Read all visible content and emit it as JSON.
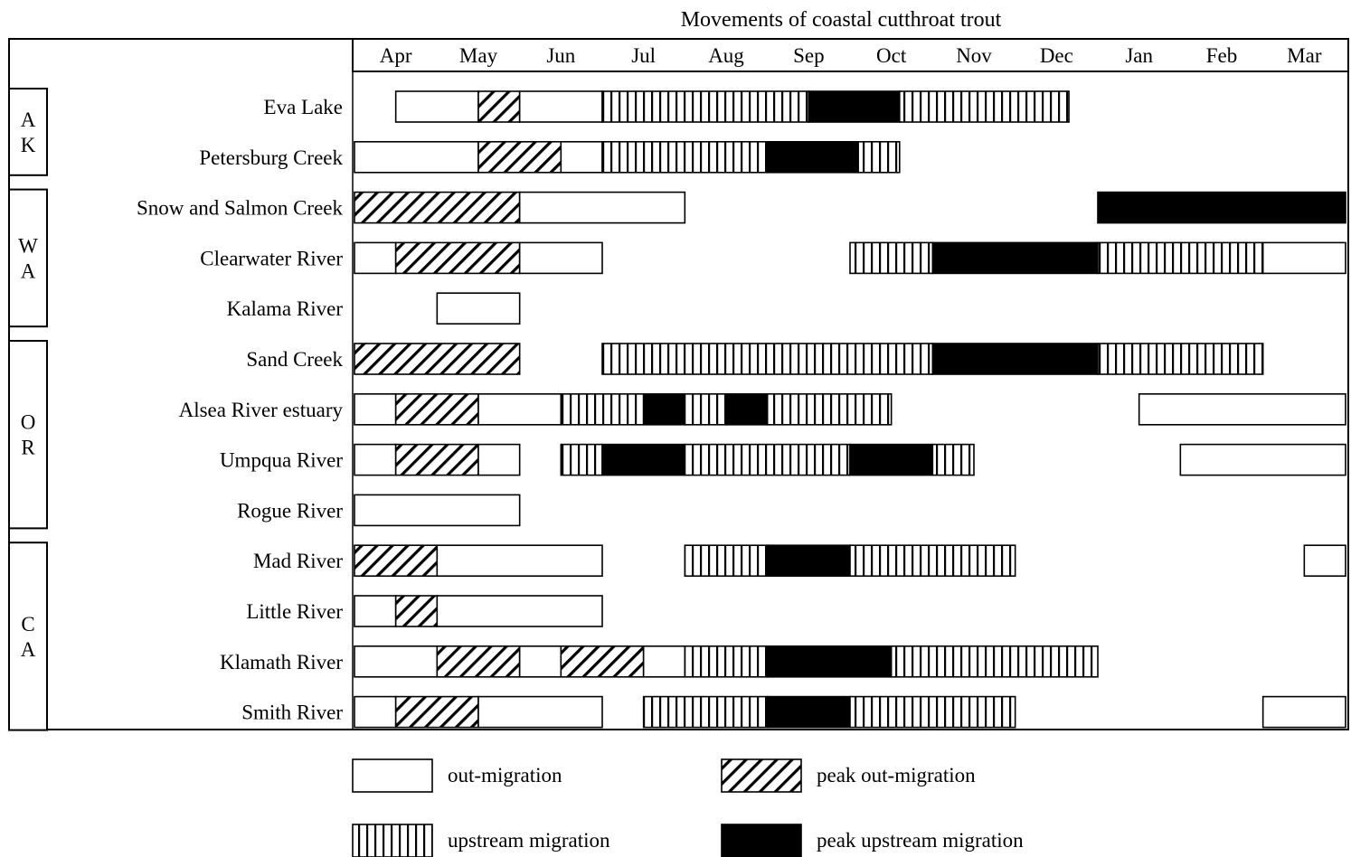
{
  "chart_data": {
    "type": "gantt",
    "title": "Movements of coastal cutthroat trout",
    "months": [
      "Apr",
      "May",
      "Jun",
      "Jul",
      "Aug",
      "Sep",
      "Oct",
      "Nov",
      "Dec",
      "Jan",
      "Feb",
      "Mar"
    ],
    "x_unit": "months from start of April",
    "state_groups": [
      {
        "label": "A\nK",
        "rows": [
          "Eva Lake",
          "Petersburg Creek"
        ]
      },
      {
        "label": "W\nA",
        "rows": [
          "Snow and Salmon Creek",
          "Clearwater River",
          "Kalama River"
        ]
      },
      {
        "label": "O\nR",
        "rows": [
          "Sand Creek",
          "Alsea River estuary",
          "Umpqua River",
          "Rogue River"
        ]
      },
      {
        "label": "C\nA",
        "rows": [
          "Mad River",
          "Little River",
          "Klamath River",
          "Smith River"
        ]
      }
    ],
    "categories": [
      {
        "key": "out",
        "label": "out-migration"
      },
      {
        "key": "peak_out",
        "label": "peak out-migration"
      },
      {
        "key": "up",
        "label": "upstream migration"
      },
      {
        "key": "peak_up",
        "label": "peak upstream migration"
      }
    ],
    "rows": [
      {
        "name": "Eva Lake",
        "segments": [
          {
            "cat": "out",
            "start": 0.5,
            "end": 1.5
          },
          {
            "cat": "peak_out",
            "start": 1.5,
            "end": 2.0
          },
          {
            "cat": "out",
            "start": 2.0,
            "end": 3.0
          },
          {
            "cat": "up",
            "start": 3.0,
            "end": 5.5
          },
          {
            "cat": "peak_up",
            "start": 5.5,
            "end": 6.6
          },
          {
            "cat": "up",
            "start": 6.6,
            "end": 8.65
          }
        ]
      },
      {
        "name": "Petersburg Creek",
        "segments": [
          {
            "cat": "out",
            "start": 0.0,
            "end": 1.5
          },
          {
            "cat": "peak_out",
            "start": 1.5,
            "end": 2.5
          },
          {
            "cat": "out",
            "start": 2.5,
            "end": 3.0
          },
          {
            "cat": "up",
            "start": 3.0,
            "end": 5.0
          },
          {
            "cat": "peak_up",
            "start": 5.0,
            "end": 6.1
          },
          {
            "cat": "up",
            "start": 6.1,
            "end": 6.6
          }
        ]
      },
      {
        "name": "Snow and Salmon Creek",
        "segments": [
          {
            "cat": "peak_out",
            "start": 0.0,
            "end": 2.0
          },
          {
            "cat": "out",
            "start": 2.0,
            "end": 4.0
          },
          {
            "cat": "peak_up",
            "start": 9.0,
            "end": 12.0
          }
        ]
      },
      {
        "name": "Clearwater River",
        "segments": [
          {
            "cat": "out",
            "start": 0.0,
            "end": 0.5
          },
          {
            "cat": "peak_out",
            "start": 0.5,
            "end": 2.0
          },
          {
            "cat": "out",
            "start": 2.0,
            "end": 3.0
          },
          {
            "cat": "up",
            "start": 6.0,
            "end": 7.0
          },
          {
            "cat": "peak_up",
            "start": 7.0,
            "end": 9.0
          },
          {
            "cat": "up",
            "start": 9.0,
            "end": 11.0
          },
          {
            "cat": "out",
            "start": 11.0,
            "end": 12.0
          }
        ]
      },
      {
        "name": "Kalama River",
        "segments": [
          {
            "cat": "out",
            "start": 1.0,
            "end": 2.0
          }
        ]
      },
      {
        "name": "Sand Creek",
        "segments": [
          {
            "cat": "peak_out",
            "start": 0.0,
            "end": 2.0
          },
          {
            "cat": "up",
            "start": 3.0,
            "end": 7.0
          },
          {
            "cat": "peak_up",
            "start": 7.0,
            "end": 9.0
          },
          {
            "cat": "up",
            "start": 9.0,
            "end": 11.0
          }
        ]
      },
      {
        "name": "Alsea River estuary",
        "segments": [
          {
            "cat": "out",
            "start": 0.0,
            "end": 0.5
          },
          {
            "cat": "peak_out",
            "start": 0.5,
            "end": 1.5
          },
          {
            "cat": "out",
            "start": 1.5,
            "end": 2.5
          },
          {
            "cat": "up",
            "start": 2.5,
            "end": 3.5
          },
          {
            "cat": "peak_up",
            "start": 3.5,
            "end": 4.0
          },
          {
            "cat": "up",
            "start": 4.0,
            "end": 4.5
          },
          {
            "cat": "peak_up",
            "start": 4.5,
            "end": 5.0
          },
          {
            "cat": "up",
            "start": 5.0,
            "end": 6.5
          },
          {
            "cat": "out",
            "start": 9.5,
            "end": 12.0
          }
        ]
      },
      {
        "name": "Umpqua River",
        "segments": [
          {
            "cat": "out",
            "start": 0.0,
            "end": 0.5
          },
          {
            "cat": "peak_out",
            "start": 0.5,
            "end": 1.5
          },
          {
            "cat": "out",
            "start": 1.5,
            "end": 2.0
          },
          {
            "cat": "up",
            "start": 2.5,
            "end": 3.0
          },
          {
            "cat": "peak_up",
            "start": 3.0,
            "end": 4.0
          },
          {
            "cat": "up",
            "start": 4.0,
            "end": 6.0
          },
          {
            "cat": "peak_up",
            "start": 6.0,
            "end": 7.0
          },
          {
            "cat": "up",
            "start": 7.0,
            "end": 7.5
          },
          {
            "cat": "out",
            "start": 10.0,
            "end": 12.0
          }
        ]
      },
      {
        "name": "Rogue River",
        "segments": [
          {
            "cat": "out",
            "start": 0.0,
            "end": 2.0
          }
        ]
      },
      {
        "name": "Mad River",
        "segments": [
          {
            "cat": "peak_out",
            "start": 0.0,
            "end": 1.0
          },
          {
            "cat": "out",
            "start": 1.0,
            "end": 3.0
          },
          {
            "cat": "up",
            "start": 4.0,
            "end": 5.0
          },
          {
            "cat": "peak_up",
            "start": 5.0,
            "end": 6.0
          },
          {
            "cat": "up",
            "start": 6.0,
            "end": 8.0
          },
          {
            "cat": "out",
            "start": 11.5,
            "end": 12.0
          }
        ]
      },
      {
        "name": "Little River",
        "segments": [
          {
            "cat": "out",
            "start": 0.0,
            "end": 0.5
          },
          {
            "cat": "peak_out",
            "start": 0.5,
            "end": 1.0
          },
          {
            "cat": "out",
            "start": 1.0,
            "end": 3.0
          }
        ]
      },
      {
        "name": "Klamath River",
        "segments": [
          {
            "cat": "out",
            "start": 0.0,
            "end": 1.0
          },
          {
            "cat": "peak_out",
            "start": 1.0,
            "end": 2.0
          },
          {
            "cat": "out",
            "start": 2.0,
            "end": 2.5
          },
          {
            "cat": "peak_out",
            "start": 2.5,
            "end": 3.5
          },
          {
            "cat": "out",
            "start": 3.5,
            "end": 4.0
          },
          {
            "cat": "up",
            "start": 4.0,
            "end": 5.0
          },
          {
            "cat": "peak_up",
            "start": 5.0,
            "end": 6.5
          },
          {
            "cat": "up",
            "start": 6.5,
            "end": 9.0
          }
        ]
      },
      {
        "name": "Smith River",
        "segments": [
          {
            "cat": "out",
            "start": 0.0,
            "end": 0.5
          },
          {
            "cat": "peak_out",
            "start": 0.5,
            "end": 1.5
          },
          {
            "cat": "out",
            "start": 1.5,
            "end": 3.0
          },
          {
            "cat": "up",
            "start": 3.5,
            "end": 5.0
          },
          {
            "cat": "peak_up",
            "start": 5.0,
            "end": 6.0
          },
          {
            "cat": "up",
            "start": 6.0,
            "end": 8.0
          },
          {
            "cat": "out",
            "start": 11.0,
            "end": 12.0
          }
        ]
      }
    ],
    "legend_placement": "bottom",
    "grid": false
  }
}
